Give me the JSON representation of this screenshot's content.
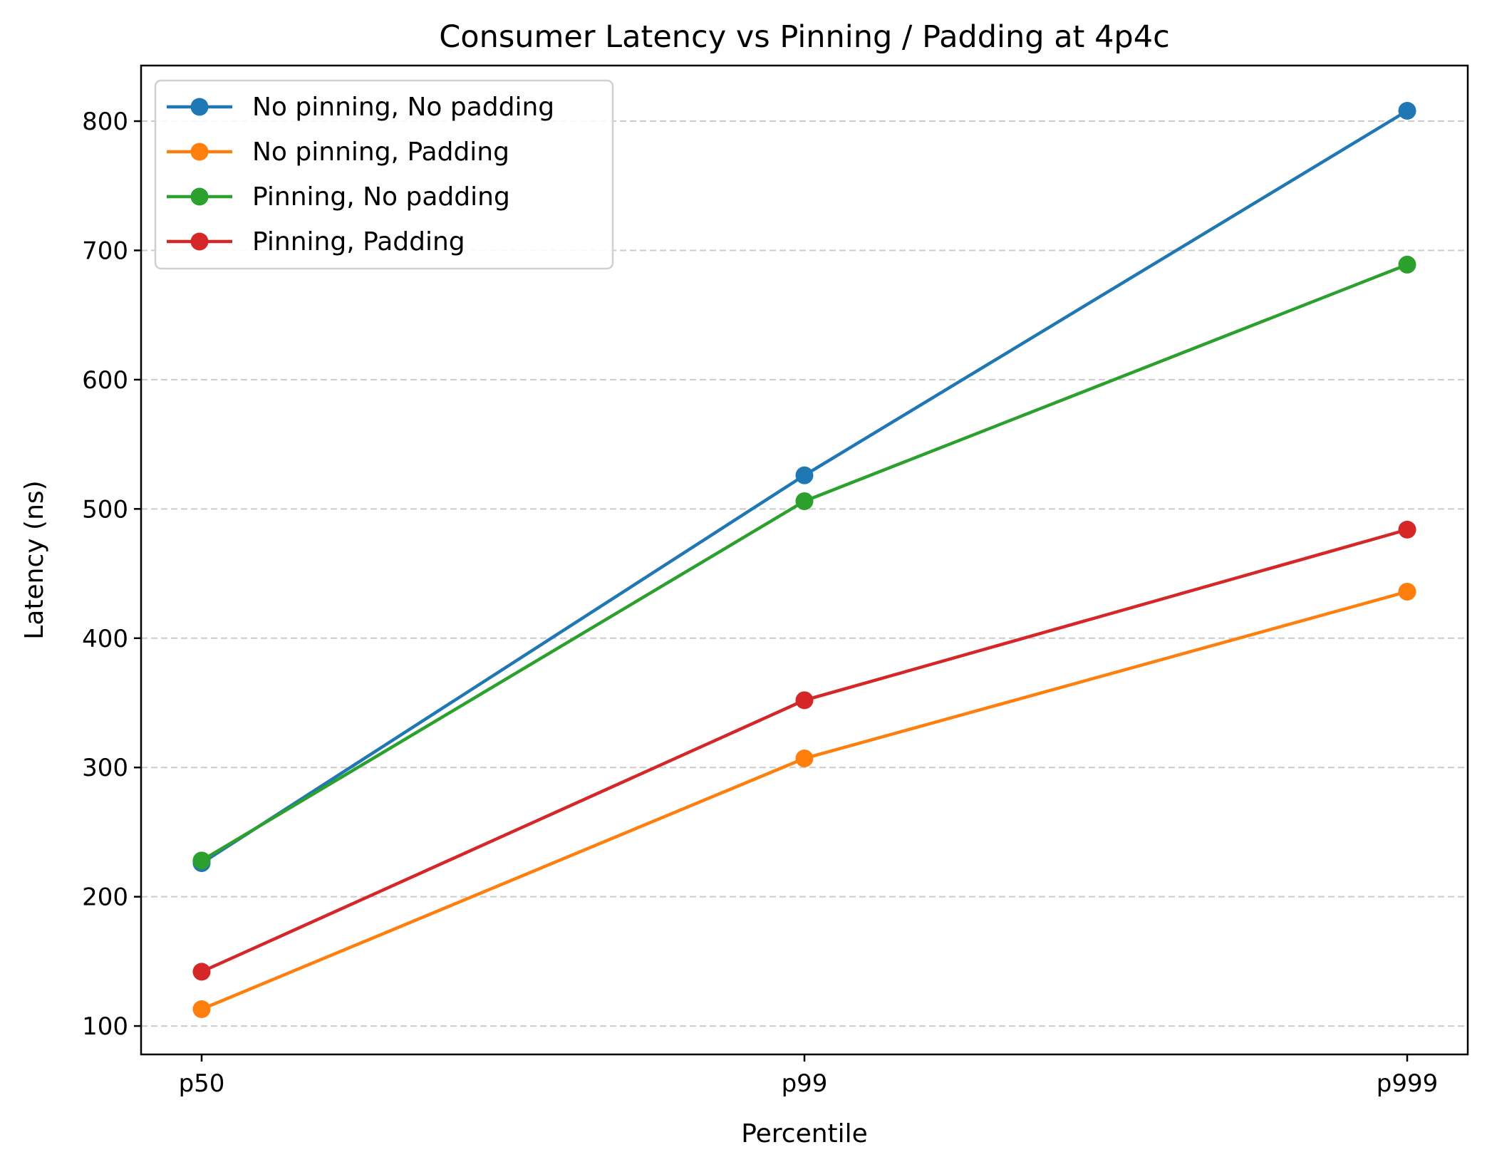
{
  "chart_data": {
    "type": "line",
    "title": "Consumer Latency vs Pinning / Padding at 4p4c",
    "xlabel": "Percentile",
    "ylabel": "Latency (ns)",
    "categories": [
      "p50",
      "p99",
      "p999"
    ],
    "ylim": [
      78,
      843
    ],
    "yticks": [
      100,
      200,
      300,
      400,
      500,
      600,
      700,
      800
    ],
    "grid": {
      "y": true,
      "style": "dashed"
    },
    "legend_position": "upper-left",
    "series": [
      {
        "name": "No pinning, No padding",
        "color": "#1f77b4",
        "values": [
          226,
          526,
          808
        ]
      },
      {
        "name": "No pinning, Padding",
        "color": "#ff7f0e",
        "values": [
          113,
          307,
          436
        ]
      },
      {
        "name": "Pinning, No padding",
        "color": "#2ca02c",
        "values": [
          228,
          506,
          689
        ]
      },
      {
        "name": "Pinning, Padding",
        "color": "#d62728",
        "values": [
          142,
          352,
          484
        ]
      }
    ]
  }
}
